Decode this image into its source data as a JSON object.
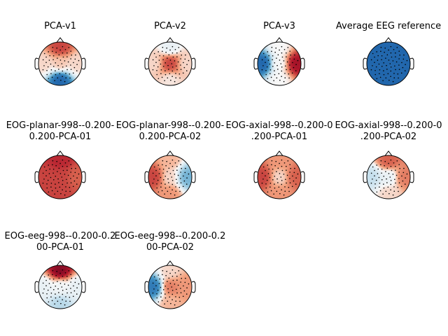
{
  "chart_data": [
    {
      "type": "heatmap",
      "title": "PCA-v1",
      "field": {
        "front": 0.6,
        "back": -1.0,
        "left": 0.1,
        "right": 0.1,
        "center": 0.15
      }
    },
    {
      "type": "heatmap",
      "title": "PCA-v2",
      "field": {
        "front": -0.1,
        "back": 0.05,
        "left": 0.1,
        "right": 0.1,
        "center": 0.6
      }
    },
    {
      "type": "heatmap",
      "title": "PCA-v3",
      "field": {
        "front": 0.0,
        "back": 0.0,
        "left": -1.0,
        "right": 0.8,
        "center": 0.0
      }
    },
    {
      "type": "heatmap",
      "title": "Average EEG reference",
      "field": {
        "front": -1.0,
        "back": -1.0,
        "left": -1.0,
        "right": -1.0,
        "center": -1.0
      }
    },
    {
      "type": "heatmap",
      "title": "EOG-planar-998--0.200-\n0.200-PCA-01",
      "field": {
        "front": 0.7,
        "back": 0.6,
        "left": 0.6,
        "right": 0.5,
        "center": 0.6
      }
    },
    {
      "type": "heatmap",
      "title": "EOG-planar-998--0.200-\n0.200-PCA-02",
      "field": {
        "front": 0.2,
        "back": 0.3,
        "left": 0.6,
        "right": -0.6,
        "center": 0.1
      }
    },
    {
      "type": "heatmap",
      "title": "EOG-axial-998--0.200-0\n.200-PCA-01",
      "field": {
        "front": 0.3,
        "back": 0.3,
        "left": 0.6,
        "right": 0.5,
        "center": 0.1
      }
    },
    {
      "type": "heatmap",
      "title": "EOG-axial-998--0.200-0\n.200-PCA-02",
      "field": {
        "front": 0.5,
        "back": 0.1,
        "left": -0.3,
        "right": 0.4,
        "center": -0.1
      }
    },
    {
      "type": "heatmap",
      "title": "EOG-eeg-998--0.200-0.2\n00-PCA-01",
      "field": {
        "front": 0.9,
        "back": -0.35,
        "left": -0.1,
        "right": -0.1,
        "center": -0.05
      }
    },
    {
      "type": "heatmap",
      "title": "EOG-eeg-998--0.200-0.2\n00-PCA-02",
      "field": {
        "front": 0.1,
        "back": 0.2,
        "left": -0.9,
        "right": 0.3,
        "center": 0.4
      }
    }
  ]
}
